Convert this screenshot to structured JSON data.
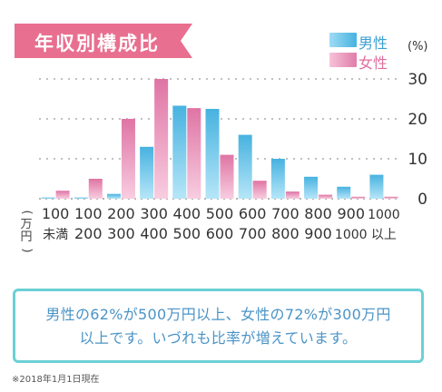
{
  "title": "年収別構成比",
  "legend": {
    "male": "男性",
    "female": "女性"
  },
  "colors": {
    "banner": "#e86f8f",
    "male": "#59bfe6",
    "female": "#e88cb4",
    "box_border": "#6cd0d4",
    "text": "#4b94c7",
    "tick_text": "#333333"
  },
  "chart_data": {
    "type": "bar",
    "yunit": "(%)",
    "ylim": [
      0,
      30
    ],
    "yticks": [
      0,
      10,
      20,
      30
    ],
    "xunit": "(万円)",
    "categories": [
      [
        "100",
        "未満"
      ],
      [
        "100",
        "200"
      ],
      [
        "200",
        "300"
      ],
      [
        "300",
        "400"
      ],
      [
        "400",
        "500"
      ],
      [
        "500",
        "600"
      ],
      [
        "600",
        "700"
      ],
      [
        "700",
        "800"
      ],
      [
        "800",
        "900"
      ],
      [
        "900",
        "1000"
      ],
      [
        "1000",
        "以上"
      ]
    ],
    "series": [
      {
        "name": "男性",
        "values": [
          0.3,
          0.3,
          1.2,
          13,
          23.3,
          22.5,
          16,
          10,
          5.5,
          3,
          6
        ]
      },
      {
        "name": "女性",
        "values": [
          2,
          5,
          20,
          30,
          22.7,
          11,
          4.5,
          1.8,
          1,
          0.5,
          0.5
        ]
      }
    ]
  },
  "summary": {
    "line1": "男性の62%が500万円以上、女性の72%が300万円",
    "line2": "以上です。いづれも比率が増えています。"
  },
  "footnote": "※2018年1月1日現在"
}
